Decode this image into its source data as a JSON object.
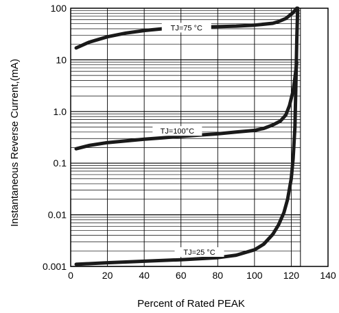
{
  "chart_data": {
    "type": "line",
    "title": "",
    "xlabel": "Percent of Rated PEAK",
    "ylabel": "Instantaneous Reverse Current,(mA)",
    "xlim": [
      0,
      140
    ],
    "ylim": [
      0.001,
      100
    ],
    "yscale": "log",
    "x_ticks": [
      "0",
      "20",
      "40",
      "60",
      "80",
      "100",
      "120",
      "140"
    ],
    "y_ticks": [
      "0.001",
      "0.01",
      "0.1",
      "1.0",
      "10",
      "100"
    ],
    "grid": true,
    "series": [
      {
        "name": "TJ=75 °C",
        "x": [
          0,
          10,
          20,
          30,
          40,
          50,
          60,
          70,
          80,
          90,
          100,
          110,
          113,
          117,
          121,
          123
        ],
        "y": [
          17,
          22,
          28,
          33,
          37,
          40,
          42,
          43,
          44,
          45,
          47,
          51,
          55,
          63,
          82,
          100
        ]
      },
      {
        "name": "TJ=100°C",
        "x": [
          0,
          10,
          20,
          30,
          40,
          50,
          60,
          70,
          80,
          90,
          100,
          105,
          110,
          114,
          117,
          119,
          121,
          122,
          123
        ],
        "y": [
          0.19,
          0.22,
          0.25,
          0.27,
          0.29,
          0.31,
          0.33,
          0.35,
          0.37,
          0.4,
          0.43,
          0.47,
          0.55,
          0.65,
          0.85,
          1.3,
          2.5,
          4.5,
          9
        ]
      },
      {
        "name": "TJ=25 °C",
        "x": [
          0,
          20,
          40,
          60,
          80,
          90,
          100,
          105,
          110,
          113,
          116,
          118,
          120,
          121,
          122,
          122.5,
          123,
          123.5
        ],
        "y": [
          0.0011,
          0.00118,
          0.00126,
          0.00135,
          0.00148,
          0.00165,
          0.0021,
          0.0027,
          0.0042,
          0.0063,
          0.011,
          0.02,
          0.05,
          0.12,
          0.5,
          3,
          25,
          100
        ]
      }
    ]
  },
  "labels": {
    "t75": "TJ=75 °C",
    "t100": "TJ=100°C",
    "t25": "TJ=25 °C"
  }
}
